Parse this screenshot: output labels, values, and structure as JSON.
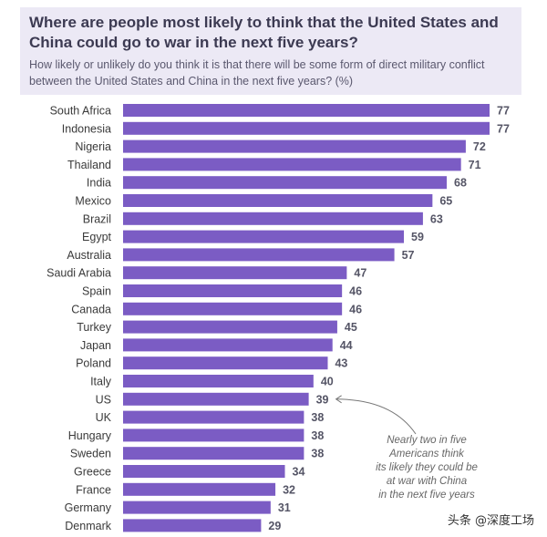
{
  "header": {
    "title_line1": "Where are people most likely to think that the United States and",
    "title_line2": "China could go to war in the next five years?",
    "subtitle": "How likely or unlikely do you think it is that there will be some form of direct military conflict between the United States and China in the next five years? (%)"
  },
  "annotation": {
    "lines": [
      "Nearly two in five",
      "Americans think",
      "its likely they could be",
      "at war with China",
      "in the next five years"
    ]
  },
  "watermark": "头条 @深度工场",
  "colors": {
    "bar": "#7b5cc4",
    "header_bg": "#ece9f5"
  },
  "chart_data": {
    "type": "bar",
    "orientation": "horizontal",
    "categories": [
      "South Africa",
      "Indonesia",
      "Nigeria",
      "Thailand",
      "India",
      "Mexico",
      "Brazil",
      "Egypt",
      "Australia",
      "Saudi Arabia",
      "Spain",
      "Canada",
      "Turkey",
      "Japan",
      "Poland",
      "Italy",
      "US",
      "UK",
      "Hungary",
      "Sweden",
      "Greece",
      "France",
      "Germany",
      "Denmark"
    ],
    "values": [
      77,
      77,
      72,
      71,
      68,
      65,
      63,
      59,
      57,
      47,
      46,
      46,
      45,
      44,
      43,
      40,
      39,
      38,
      38,
      38,
      34,
      32,
      31,
      29
    ],
    "xlim": [
      0,
      77
    ],
    "grid": false,
    "data_labels": true
  }
}
